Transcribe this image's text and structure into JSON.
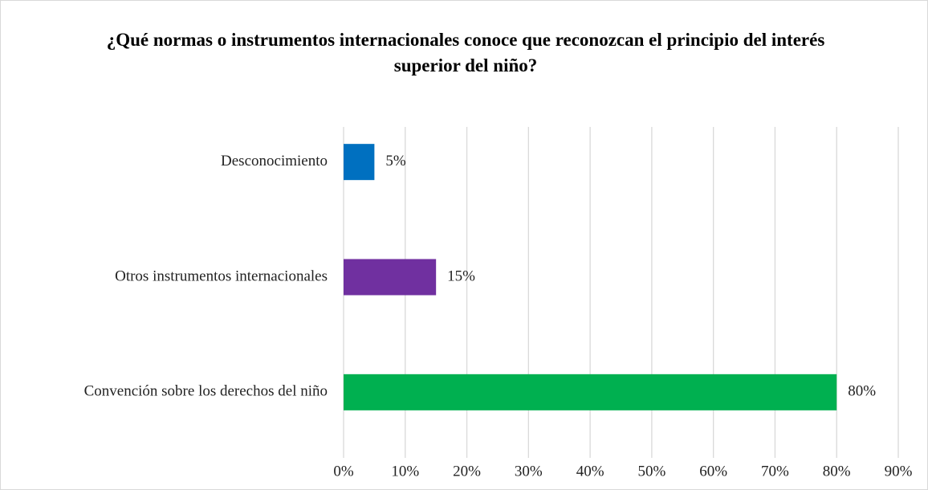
{
  "chart_data": {
    "type": "bar",
    "orientation": "horizontal",
    "title": "¿Qué normas o instrumentos internacionales conoce que reconozcan el principio del interés superior del niño?",
    "categories": [
      "Desconocimiento",
      "Otros instrumentos internacionales",
      "Convención sobre los derechos del niño"
    ],
    "values": [
      5,
      15,
      80
    ],
    "value_labels": [
      "5%",
      "15%",
      "80%"
    ],
    "colors": [
      "#0070c0",
      "#7030a0",
      "#00b050"
    ],
    "xlim": [
      0,
      90
    ],
    "xticks": [
      {
        "value": 0,
        "label": "0%"
      },
      {
        "value": 10,
        "label": "10%"
      },
      {
        "value": 20,
        "label": "20%"
      },
      {
        "value": 30,
        "label": "30%"
      },
      {
        "value": 40,
        "label": "40%"
      },
      {
        "value": 50,
        "label": "50%"
      },
      {
        "value": 60,
        "label": "60%"
      },
      {
        "value": 70,
        "label": "70%"
      },
      {
        "value": 80,
        "label": "80%"
      },
      {
        "value": 90,
        "label": "90%"
      }
    ],
    "grid": true
  }
}
